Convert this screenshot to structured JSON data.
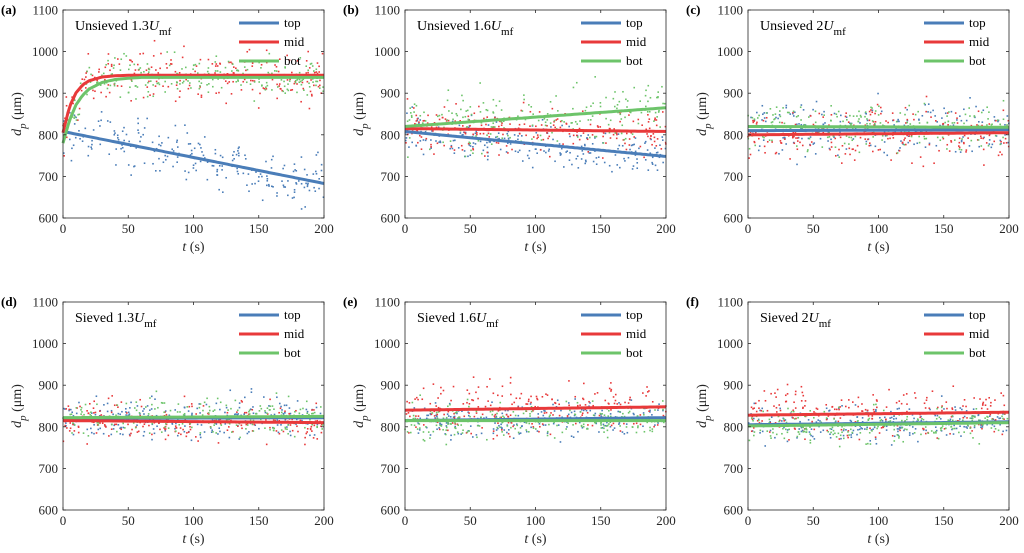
{
  "chart_data": [
    {
      "panel": "(a)",
      "type": "scatter",
      "title_prefix": "Unsieved 1.3",
      "title_symbol": "U",
      "title_sub": "mf",
      "xlabel_var": "t",
      "xlabel_unit": "(s)",
      "ylabel_var": "d",
      "ylabel_sub": "p",
      "ylabel_unit": "(μm)",
      "xlim": [
        0,
        200
      ],
      "ylim": [
        600,
        1100
      ],
      "xticks": [
        0,
        50,
        100,
        150,
        200
      ],
      "yticks": [
        600,
        700,
        800,
        900,
        1000,
        1100
      ],
      "legend": "top-right",
      "series": [
        {
          "name": "top",
          "color": "#4a7db8",
          "fit_t": [
            0,
            200
          ],
          "fit_dp": [
            808,
            683
          ],
          "scatter_spread": 45
        },
        {
          "name": "mid",
          "color": "#e8393a",
          "fit_t": [
            0,
            5,
            10,
            15,
            20,
            30,
            40,
            50,
            200
          ],
          "fit_dp": [
            805,
            868,
            901,
            920,
            930,
            939,
            942,
            943,
            943
          ],
          "scatter_spread": 45
        },
        {
          "name": "bot",
          "color": "#6dc46a",
          "fit_t": [
            0,
            5,
            10,
            15,
            20,
            30,
            40,
            50,
            60,
            200
          ],
          "fit_dp": [
            780,
            835,
            872,
            895,
            910,
            926,
            933,
            936,
            938,
            938
          ],
          "scatter_spread": 35
        }
      ]
    },
    {
      "panel": "(b)",
      "type": "scatter",
      "title_prefix": "Unsieved 1.6",
      "title_symbol": "U",
      "title_sub": "mf",
      "xlabel_var": "t",
      "xlabel_unit": "(s)",
      "ylabel_var": "d",
      "ylabel_sub": "p",
      "ylabel_unit": "(μm)",
      "xlim": [
        0,
        200
      ],
      "ylim": [
        600,
        1100
      ],
      "xticks": [
        0,
        50,
        100,
        150,
        200
      ],
      "yticks": [
        600,
        700,
        800,
        900,
        1000,
        1100
      ],
      "legend": "top-right",
      "series": [
        {
          "name": "top",
          "color": "#4a7db8",
          "fit_t": [
            0,
            200
          ],
          "fit_dp": [
            808,
            748
          ],
          "scatter_spread": 35
        },
        {
          "name": "mid",
          "color": "#e8393a",
          "fit_t": [
            0,
            200
          ],
          "fit_dp": [
            815,
            808
          ],
          "scatter_spread": 45
        },
        {
          "name": "bot",
          "color": "#6dc46a",
          "fit_t": [
            0,
            200
          ],
          "fit_dp": [
            820,
            865
          ],
          "scatter_spread": 45
        }
      ]
    },
    {
      "panel": "(c)",
      "type": "scatter",
      "title_prefix": "Unsieved 2",
      "title_symbol": "U",
      "title_sub": "mf",
      "xlabel_var": "t",
      "xlabel_unit": "(s)",
      "ylabel_var": "d",
      "ylabel_sub": "p",
      "ylabel_unit": "(μm)",
      "xlim": [
        0,
        200
      ],
      "ylim": [
        600,
        1100
      ],
      "xticks": [
        0,
        50,
        100,
        150,
        200
      ],
      "yticks": [
        600,
        700,
        800,
        900,
        1000,
        1100
      ],
      "legend": "top-right",
      "series": [
        {
          "name": "top",
          "color": "#4a7db8",
          "fit_t": [
            0,
            200
          ],
          "fit_dp": [
            810,
            812
          ],
          "scatter_spread": 45
        },
        {
          "name": "mid",
          "color": "#e8393a",
          "fit_t": [
            0,
            200
          ],
          "fit_dp": [
            800,
            805
          ],
          "scatter_spread": 45
        },
        {
          "name": "bot",
          "color": "#6dc46a",
          "fit_t": [
            0,
            200
          ],
          "fit_dp": [
            820,
            818
          ],
          "scatter_spread": 40
        }
      ]
    },
    {
      "panel": "(d)",
      "type": "scatter",
      "title_prefix": "Sieved 1.3",
      "title_symbol": "U",
      "title_sub": "mf",
      "xlabel_var": "t",
      "xlabel_unit": "(s)",
      "ylabel_var": "d",
      "ylabel_sub": "p",
      "ylabel_unit": "(μm)",
      "xlim": [
        0,
        200
      ],
      "ylim": [
        600,
        1100
      ],
      "xticks": [
        0,
        50,
        100,
        150,
        200
      ],
      "yticks": [
        600,
        700,
        800,
        900,
        1000,
        1100
      ],
      "legend": "top-right",
      "series": [
        {
          "name": "top",
          "color": "#4a7db8",
          "fit_t": [
            0,
            200
          ],
          "fit_dp": [
            820,
            822
          ],
          "scatter_spread": 35
        },
        {
          "name": "mid",
          "color": "#e8393a",
          "fit_t": [
            0,
            200
          ],
          "fit_dp": [
            815,
            810
          ],
          "scatter_spread": 35
        },
        {
          "name": "bot",
          "color": "#6dc46a",
          "fit_t": [
            0,
            200
          ],
          "fit_dp": [
            822,
            825
          ],
          "scatter_spread": 30
        }
      ]
    },
    {
      "panel": "(e)",
      "type": "scatter",
      "title_prefix": "Sieved 1.6",
      "title_symbol": "U",
      "title_sub": "mf",
      "xlabel_var": "t",
      "xlabel_unit": "(s)",
      "ylabel_var": "d",
      "ylabel_sub": "p",
      "ylabel_unit": "(μm)",
      "xlim": [
        0,
        200
      ],
      "ylim": [
        600,
        1100
      ],
      "xticks": [
        0,
        50,
        100,
        150,
        200
      ],
      "yticks": [
        600,
        700,
        800,
        900,
        1000,
        1100
      ],
      "legend": "top-right",
      "series": [
        {
          "name": "top",
          "color": "#4a7db8",
          "fit_t": [
            0,
            200
          ],
          "fit_dp": [
            815,
            822
          ],
          "scatter_spread": 30
        },
        {
          "name": "mid",
          "color": "#e8393a",
          "fit_t": [
            0,
            200
          ],
          "fit_dp": [
            840,
            848
          ],
          "scatter_spread": 45
        },
        {
          "name": "bot",
          "color": "#6dc46a",
          "fit_t": [
            0,
            200
          ],
          "fit_dp": [
            815,
            815
          ],
          "scatter_spread": 30
        }
      ]
    },
    {
      "panel": "(f)",
      "type": "scatter",
      "title_prefix": "Sieved 2",
      "title_symbol": "U",
      "title_sub": "mf",
      "xlabel_var": "t",
      "xlabel_unit": "(s)",
      "ylabel_var": "d",
      "ylabel_sub": "p",
      "ylabel_unit": "(μm)",
      "xlim": [
        0,
        200
      ],
      "ylim": [
        600,
        1100
      ],
      "xticks": [
        0,
        50,
        100,
        150,
        200
      ],
      "yticks": [
        600,
        700,
        800,
        900,
        1000,
        1100
      ],
      "legend": "top-right",
      "series": [
        {
          "name": "top",
          "color": "#4a7db8",
          "fit_t": [
            0,
            200
          ],
          "fit_dp": [
            805,
            812
          ],
          "scatter_spread": 30
        },
        {
          "name": "mid",
          "color": "#e8393a",
          "fit_t": [
            0,
            200
          ],
          "fit_dp": [
            828,
            835
          ],
          "scatter_spread": 45
        },
        {
          "name": "bot",
          "color": "#6dc46a",
          "fit_t": [
            0,
            200
          ],
          "fit_dp": [
            802,
            810
          ],
          "scatter_spread": 30
        }
      ]
    }
  ]
}
